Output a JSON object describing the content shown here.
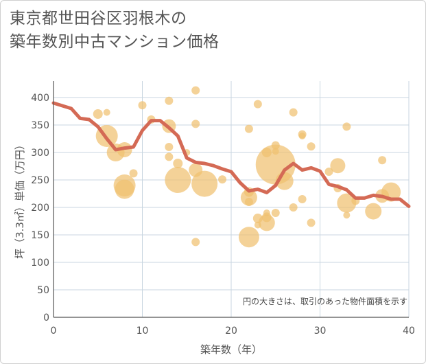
{
  "title_lines": [
    "東京都世田谷区羽根木の",
    "築年数別中古マンション価格"
  ],
  "chart_data": {
    "type": "scatter",
    "xlabel": "築年数（年）",
    "ylabel": "坪（3.3㎡）単価（万円）",
    "xlim": [
      0,
      40
    ],
    "ylim": [
      0,
      430
    ],
    "xticks": [
      0,
      10,
      20,
      30,
      40
    ],
    "yticks": [
      0,
      50,
      100,
      150,
      200,
      250,
      300,
      350,
      400
    ],
    "grid": true,
    "annotation": "円の大きさは、取引のあった物件面積を示す",
    "colors": {
      "bubble": "#f0c070",
      "line": "#d46a55",
      "grid": "#c8d6e0",
      "axis": "#555555"
    },
    "scatter_points": [
      {
        "x": 5,
        "y": 370,
        "s": 7
      },
      {
        "x": 6,
        "y": 373,
        "s": 5
      },
      {
        "x": 6,
        "y": 330,
        "s": 16
      },
      {
        "x": 7,
        "y": 300,
        "s": 13
      },
      {
        "x": 8,
        "y": 305,
        "s": 11
      },
      {
        "x": 8,
        "y": 240,
        "s": 16
      },
      {
        "x": 8,
        "y": 233,
        "s": 14
      },
      {
        "x": 9,
        "y": 262,
        "s": 6
      },
      {
        "x": 10,
        "y": 386,
        "s": 6
      },
      {
        "x": 11,
        "y": 360,
        "s": 6
      },
      {
        "x": 13,
        "y": 394,
        "s": 6
      },
      {
        "x": 13,
        "y": 348,
        "s": 10
      },
      {
        "x": 13,
        "y": 310,
        "s": 6
      },
      {
        "x": 13,
        "y": 292,
        "s": 6
      },
      {
        "x": 14,
        "y": 280,
        "s": 7
      },
      {
        "x": 14,
        "y": 250,
        "s": 19
      },
      {
        "x": 15,
        "y": 300,
        "s": 5
      },
      {
        "x": 16,
        "y": 413,
        "s": 6
      },
      {
        "x": 16,
        "y": 352,
        "s": 6
      },
      {
        "x": 16,
        "y": 268,
        "s": 10
      },
      {
        "x": 16,
        "y": 137,
        "s": 6
      },
      {
        "x": 17,
        "y": 243,
        "s": 19
      },
      {
        "x": 19,
        "y": 251,
        "s": 6
      },
      {
        "x": 22,
        "y": 343,
        "s": 6
      },
      {
        "x": 22,
        "y": 228,
        "s": 7
      },
      {
        "x": 22,
        "y": 218,
        "s": 12
      },
      {
        "x": 22,
        "y": 210,
        "s": 6
      },
      {
        "x": 22,
        "y": 146,
        "s": 15
      },
      {
        "x": 23,
        "y": 388,
        "s": 6
      },
      {
        "x": 23,
        "y": 180,
        "s": 7
      },
      {
        "x": 23,
        "y": 168,
        "s": 5
      },
      {
        "x": 24,
        "y": 300,
        "s": 7
      },
      {
        "x": 24,
        "y": 190,
        "s": 5
      },
      {
        "x": 24,
        "y": 182,
        "s": 7
      },
      {
        "x": 24,
        "y": 172,
        "s": 12
      },
      {
        "x": 25,
        "y": 313,
        "s": 6
      },
      {
        "x": 25,
        "y": 302,
        "s": 5
      },
      {
        "x": 25,
        "y": 190,
        "s": 6
      },
      {
        "x": 25,
        "y": 278,
        "s": 29
      },
      {
        "x": 26,
        "y": 248,
        "s": 13
      },
      {
        "x": 27,
        "y": 373,
        "s": 6
      },
      {
        "x": 27,
        "y": 200,
        "s": 6
      },
      {
        "x": 28,
        "y": 333,
        "s": 6
      },
      {
        "x": 28,
        "y": 330,
        "s": 5
      },
      {
        "x": 28,
        "y": 215,
        "s": 6
      },
      {
        "x": 29,
        "y": 311,
        "s": 6
      },
      {
        "x": 29,
        "y": 172,
        "s": 6
      },
      {
        "x": 31,
        "y": 265,
        "s": 6
      },
      {
        "x": 32,
        "y": 276,
        "s": 11
      },
      {
        "x": 32,
        "y": 235,
        "s": 6
      },
      {
        "x": 33,
        "y": 347,
        "s": 6
      },
      {
        "x": 33,
        "y": 208,
        "s": 14
      },
      {
        "x": 33,
        "y": 186,
        "s": 5
      },
      {
        "x": 34,
        "y": 212,
        "s": 6
      },
      {
        "x": 36,
        "y": 193,
        "s": 12
      },
      {
        "x": 37,
        "y": 286,
        "s": 6
      },
      {
        "x": 37,
        "y": 221,
        "s": 10
      },
      {
        "x": 38,
        "y": 228,
        "s": 14
      }
    ],
    "average_line": {
      "x": [
        0,
        1,
        2,
        3,
        4,
        5,
        6,
        7,
        8,
        9,
        10,
        11,
        12,
        13,
        14,
        15,
        16,
        17,
        18,
        19,
        20,
        21,
        22,
        23,
        24,
        25,
        26,
        27,
        28,
        29,
        30,
        31,
        32,
        33,
        34,
        35,
        36,
        37,
        38,
        39,
        40
      ],
      "y": [
        390,
        385,
        380,
        362,
        360,
        347,
        325,
        305,
        308,
        310,
        340,
        358,
        358,
        345,
        330,
        290,
        282,
        280,
        276,
        270,
        265,
        245,
        230,
        233,
        227,
        240,
        268,
        280,
        268,
        272,
        266,
        242,
        238,
        232,
        217,
        217,
        222,
        220,
        215,
        215,
        202
      ]
    }
  }
}
